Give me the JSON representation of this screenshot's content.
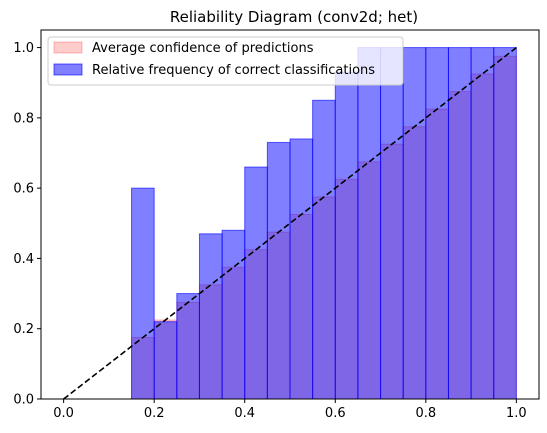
{
  "chart_data": {
    "type": "bar",
    "title": "Reliability Diagram (conv2d; het)",
    "xlabel": "",
    "ylabel": "",
    "xlim": [
      -0.05,
      1.05
    ],
    "ylim": [
      0.0,
      1.05
    ],
    "x_ticks": [
      "0.0",
      "0.2",
      "0.4",
      "0.6",
      "0.8",
      "1.0"
    ],
    "y_ticks": [
      "0.0",
      "0.2",
      "0.4",
      "0.6",
      "0.8",
      "1.0"
    ],
    "grid": false,
    "legend_position": "top-left",
    "bin_width": 0.05,
    "bin_lefts": [
      0.15,
      0.2,
      0.25,
      0.3,
      0.35,
      0.4,
      0.45,
      0.5,
      0.55,
      0.6,
      0.65,
      0.7,
      0.75,
      0.8,
      0.85,
      0.9,
      0.95
    ],
    "series": [
      {
        "name": "Average confidence of predictions",
        "color": "#ff0000",
        "fill_opacity": 0.2,
        "values": [
          0.175,
          0.225,
          0.275,
          0.325,
          0.375,
          0.425,
          0.475,
          0.525,
          0.575,
          0.625,
          0.675,
          0.725,
          0.775,
          0.825,
          0.875,
          0.925,
          0.975
        ]
      },
      {
        "name": "Relative frequency of correct classifications",
        "color": "#0000ff",
        "fill_opacity": 0.5,
        "values": [
          0.6,
          0.22,
          0.3,
          0.47,
          0.48,
          0.66,
          0.73,
          0.74,
          0.85,
          0.93,
          1.0,
          1.0,
          1.0,
          1.0,
          1.0,
          1.0,
          1.0
        ]
      }
    ],
    "reference_line": {
      "from": [
        0.0,
        0.0
      ],
      "to": [
        1.0,
        1.0
      ],
      "style": "dashed",
      "color": "#000000"
    }
  }
}
